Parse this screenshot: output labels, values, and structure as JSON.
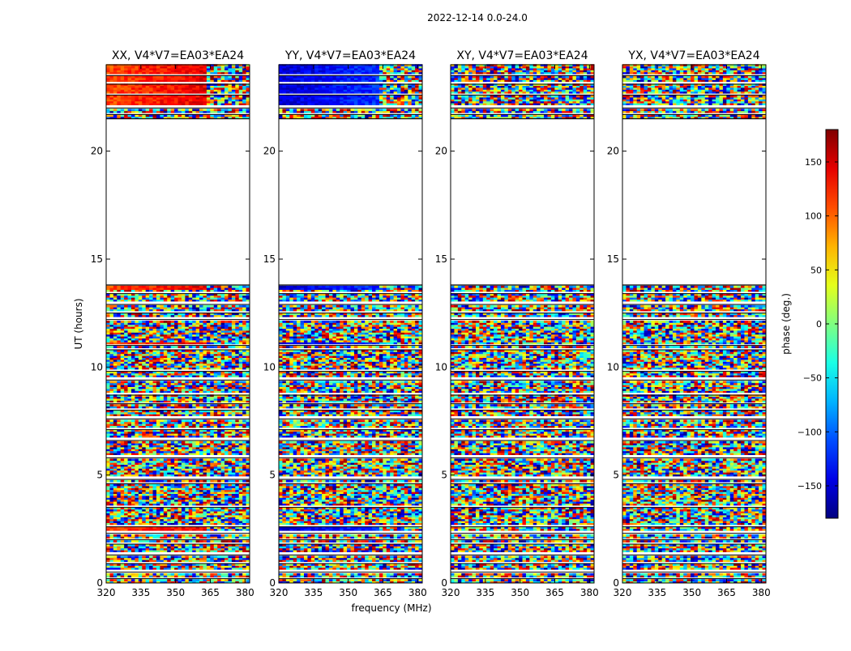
{
  "figure_title": "2022-12-14 0.0-24.0",
  "chart_data": {
    "type": "heatmap",
    "xlabel": "frequency (MHz)",
    "ylabel": "UT (hours)",
    "x_ticks": [
      320,
      335,
      350,
      365,
      380
    ],
    "y_ticks": [
      0,
      5,
      10,
      15,
      20
    ],
    "xlim": [
      320,
      382
    ],
    "ylim": [
      0,
      24
    ],
    "colorbar": {
      "label": "phase (deg.)",
      "ticks": [
        -150,
        -100,
        -50,
        0,
        50,
        100,
        150
      ],
      "range": [
        -180,
        180
      ],
      "colormap": "jet",
      "colors": [
        "#00007f",
        "#0000ff",
        "#00ffff",
        "#7fff7f",
        "#ffff00",
        "#ff0000",
        "#7f0000"
      ]
    },
    "panels": [
      {
        "title": "XX, V4*V7=EA03*EA24",
        "coherent_phase_deg": 110
      },
      {
        "title": "YY, V4*V7=EA03*EA24",
        "coherent_phase_deg": -150
      },
      {
        "title": "XY, V4*V7=EA03*EA24",
        "coherent_phase_deg": null
      },
      {
        "title": "YX, V4*V7=EA03*EA24",
        "coherent_phase_deg": null
      }
    ],
    "gap_hours": [
      13.8,
      21.5
    ],
    "blank_rows_hours": [
      0.2,
      0.5,
      0.9,
      1.3,
      1.8,
      2.0,
      2.3,
      2.6,
      3.5,
      4.6,
      4.8,
      5.8,
      6.6,
      7.1,
      7.6,
      8.0,
      8.3,
      8.7,
      9.4,
      9.8,
      10.8,
      11.0,
      12.2,
      12.5,
      12.9,
      13.4,
      21.7,
      22.0,
      22.6,
      23.1,
      23.5
    ],
    "coherent_bands_hours": [
      [
        2.3,
        2.6
      ],
      [
        4.7,
        4.9
      ],
      [
        10.9,
        11.1
      ],
      [
        13.5,
        13.8
      ],
      [
        22.1,
        23.1
      ],
      [
        23.2,
        24.0
      ]
    ]
  }
}
